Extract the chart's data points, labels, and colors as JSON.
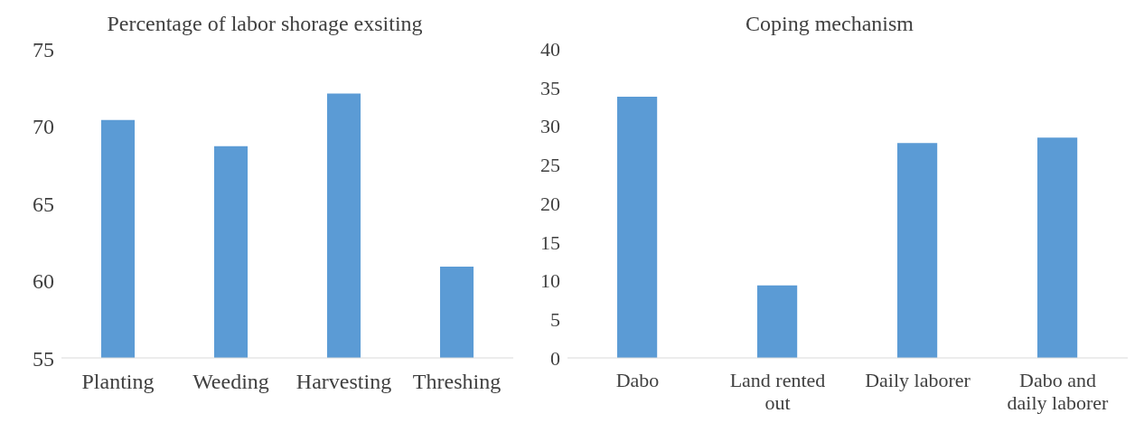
{
  "chart_data": [
    {
      "type": "bar",
      "title": "Percentage of labor shorage exsiting",
      "categories": [
        "Planting",
        "Weeding",
        "Harvesting",
        "Threshing"
      ],
      "values": [
        70.4,
        68.7,
        72.1,
        60.9
      ],
      "color": "#5b9bd5",
      "ylim": [
        55,
        75
      ],
      "yticks": [
        55,
        60,
        65,
        70,
        75
      ],
      "grid": false
    },
    {
      "type": "bar",
      "title": "Coping mechanism",
      "categories": [
        "Dabo",
        "Land rented out",
        "Daily laborer",
        "Dabo and daily laborer"
      ],
      "values": [
        33.8,
        9.4,
        27.8,
        28.5
      ],
      "color": "#5b9bd5",
      "ylim": [
        0,
        40
      ],
      "yticks": [
        0,
        5,
        10,
        15,
        20,
        25,
        30,
        35,
        40
      ],
      "grid": false
    }
  ]
}
